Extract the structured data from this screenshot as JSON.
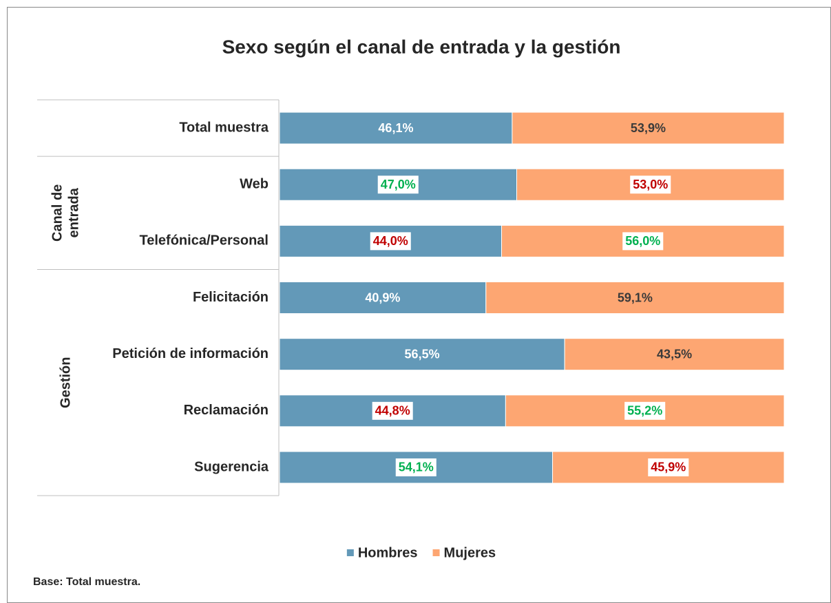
{
  "chart_data": {
    "type": "stacked_barh",
    "title": "Sexo según el canal de entrada y la gestión",
    "categories": [
      "Total muestra",
      "Web",
      "Telefónica/Personal",
      "Felicitación",
      "Petición de información",
      "Reclamación",
      "Sugerencia"
    ],
    "groups": [
      {
        "label": [
          "Canal de",
          "entrada"
        ],
        "first": 1,
        "last": 2
      },
      {
        "label": [
          "Gestión"
        ],
        "first": 3,
        "last": 6
      }
    ],
    "xlim": [
      0,
      100
    ],
    "series": [
      {
        "name": "Hombres",
        "color": "#6399b8",
        "values": [
          46.1,
          47.0,
          44.0,
          40.9,
          56.5,
          44.8,
          54.1
        ],
        "value_labels": [
          "46,1%",
          "47,0%",
          "44,0%",
          "40,9%",
          "56,5%",
          "44,8%",
          "54,1%"
        ],
        "label_colors": [
          "#ffffff",
          "#00b050",
          "#c00000",
          "#ffffff",
          "#ffffff",
          "#c00000",
          "#00b050"
        ],
        "label_boxes": [
          false,
          true,
          true,
          false,
          false,
          true,
          true
        ]
      },
      {
        "name": "Mujeres",
        "color": "#fda672",
        "values": [
          53.9,
          53.0,
          56.0,
          59.1,
          43.5,
          55.2,
          45.9
        ],
        "value_labels": [
          "53,9%",
          "53,0%",
          "56,0%",
          "59,1%",
          "43,5%",
          "55,2%",
          "45,9%"
        ],
        "label_colors": [
          "#3a3a3a",
          "#c00000",
          "#00b050",
          "#3a3a3a",
          "#3a3a3a",
          "#00b050",
          "#c00000"
        ],
        "label_boxes": [
          false,
          true,
          true,
          false,
          false,
          true,
          true
        ]
      }
    ],
    "legend": "bottom",
    "footnote": "Base: Total muestra."
  }
}
